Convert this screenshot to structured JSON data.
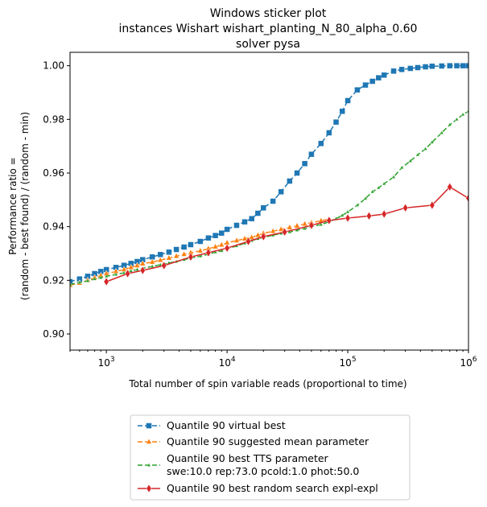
{
  "chart_data": {
    "type": "line",
    "title_lines": [
      "Windows sticker plot",
      "instances Wishart wishart_planting_N_80_alpha_0.60",
      "solver pysa"
    ],
    "xlabel": "Total number of spin variable reads (proportional to time)",
    "ylabel_lines": [
      "Performance ratio =",
      "(random - best found) / (random - min)"
    ],
    "xscale": "log",
    "xlim": [
      500,
      1000000
    ],
    "ylim": [
      0.894,
      1.005
    ],
    "grid": false,
    "legend_position": "below",
    "x_ticks": [
      {
        "value": 1000,
        "base": "10",
        "exp": "3"
      },
      {
        "value": 10000,
        "base": "10",
        "exp": "4"
      },
      {
        "value": 100000,
        "base": "10",
        "exp": "5"
      },
      {
        "value": 1000000,
        "base": "10",
        "exp": "6"
      }
    ],
    "y_ticks": [
      {
        "value": 0.9,
        "label": "0.90"
      },
      {
        "value": 0.92,
        "label": "0.92"
      },
      {
        "value": 0.94,
        "label": "0.94"
      },
      {
        "value": 0.96,
        "label": "0.96"
      },
      {
        "value": 0.98,
        "label": "0.98"
      },
      {
        "value": 1.0,
        "label": "1.00"
      }
    ],
    "series": [
      {
        "name_lines": [
          "Quantile 90 virtual best"
        ],
        "color": "#1f77b4",
        "marker": "square",
        "dash": "6,3",
        "points": [
          [
            500,
            0.9195
          ],
          [
            600,
            0.9205
          ],
          [
            700,
            0.9215
          ],
          [
            800,
            0.9225
          ],
          [
            900,
            0.9233
          ],
          [
            1000,
            0.924
          ],
          [
            1200,
            0.9248
          ],
          [
            1400,
            0.9256
          ],
          [
            1600,
            0.9263
          ],
          [
            1800,
            0.927
          ],
          [
            2000,
            0.9277
          ],
          [
            2400,
            0.9287
          ],
          [
            2800,
            0.9296
          ],
          [
            3300,
            0.9305
          ],
          [
            3800,
            0.9315
          ],
          [
            4400,
            0.9324
          ],
          [
            5000,
            0.9333
          ],
          [
            6000,
            0.9345
          ],
          [
            7000,
            0.9358
          ],
          [
            8000,
            0.9367
          ],
          [
            9000,
            0.9376
          ],
          [
            10000,
            0.939
          ],
          [
            12000,
            0.9405
          ],
          [
            14000,
            0.9418
          ],
          [
            16000,
            0.943
          ],
          [
            18000,
            0.945
          ],
          [
            20000,
            0.947
          ],
          [
            24000,
            0.9495
          ],
          [
            28000,
            0.953
          ],
          [
            33000,
            0.957
          ],
          [
            38000,
            0.96
          ],
          [
            44000,
            0.9635
          ],
          [
            50000,
            0.967
          ],
          [
            60000,
            0.971
          ],
          [
            70000,
            0.975
          ],
          [
            80000,
            0.979
          ],
          [
            90000,
            0.983
          ],
          [
            100000,
            0.987
          ],
          [
            120000,
            0.991
          ],
          [
            140000,
            0.9928
          ],
          [
            160000,
            0.9942
          ],
          [
            180000,
            0.9955
          ],
          [
            200000,
            0.9965
          ],
          [
            240000,
            0.998
          ],
          [
            280000,
            0.9986
          ],
          [
            330000,
            0.999
          ],
          [
            380000,
            0.9993
          ],
          [
            440000,
            0.9996
          ],
          [
            500000,
            0.9998
          ],
          [
            600000,
            0.9999
          ],
          [
            700000,
            1.0
          ],
          [
            800000,
            1.0
          ],
          [
            900000,
            1.0
          ],
          [
            1000000,
            1.0
          ]
        ]
      },
      {
        "name_lines": [
          "Quantile 90 suggested mean parameter"
        ],
        "color": "#ff7f0e",
        "marker": "triangle",
        "dash": "6,3",
        "points": [
          [
            500,
            0.9182
          ],
          [
            600,
            0.919
          ],
          [
            700,
            0.92
          ],
          [
            800,
            0.921
          ],
          [
            900,
            0.9218
          ],
          [
            1000,
            0.9225
          ],
          [
            1200,
            0.9233
          ],
          [
            1400,
            0.924
          ],
          [
            1600,
            0.9248
          ],
          [
            1800,
            0.9255
          ],
          [
            2000,
            0.9262
          ],
          [
            2400,
            0.9268
          ],
          [
            2800,
            0.9275
          ],
          [
            3300,
            0.9283
          ],
          [
            3800,
            0.929
          ],
          [
            4400,
            0.9297
          ],
          [
            5000,
            0.9303
          ],
          [
            6000,
            0.931
          ],
          [
            7000,
            0.9318
          ],
          [
            8000,
            0.9325
          ],
          [
            9000,
            0.9332
          ],
          [
            10000,
            0.934
          ],
          [
            12000,
            0.9348
          ],
          [
            14000,
            0.9355
          ],
          [
            16000,
            0.936
          ],
          [
            18000,
            0.9368
          ],
          [
            20000,
            0.9375
          ],
          [
            24000,
            0.9383
          ],
          [
            28000,
            0.939
          ],
          [
            33000,
            0.9397
          ],
          [
            38000,
            0.9403
          ],
          [
            44000,
            0.941
          ],
          [
            50000,
            0.9415
          ],
          [
            60000,
            0.9422
          ],
          [
            70000,
            0.9428
          ]
        ]
      },
      {
        "name_lines": [
          "Quantile 90 best TTS parameter",
          "swe:10.0 rep:73.0 pcold:1.0 phot:50.0"
        ],
        "color": "#2ca02c",
        "marker": "smalltri",
        "dash": "6,3",
        "points": [
          [
            500,
            0.9185
          ],
          [
            600,
            0.9192
          ],
          [
            700,
            0.9198
          ],
          [
            800,
            0.9205
          ],
          [
            900,
            0.921
          ],
          [
            1000,
            0.9215
          ],
          [
            1200,
            0.9222
          ],
          [
            1400,
            0.9228
          ],
          [
            1600,
            0.9235
          ],
          [
            1800,
            0.924
          ],
          [
            2000,
            0.9245
          ],
          [
            2400,
            0.9252
          ],
          [
            2800,
            0.9258
          ],
          [
            3300,
            0.9265
          ],
          [
            3800,
            0.927
          ],
          [
            4400,
            0.9277
          ],
          [
            5000,
            0.9283
          ],
          [
            6000,
            0.929
          ],
          [
            7000,
            0.9297
          ],
          [
            8000,
            0.9305
          ],
          [
            9000,
            0.931
          ],
          [
            10000,
            0.9318
          ],
          [
            12000,
            0.9328
          ],
          [
            14000,
            0.9338
          ],
          [
            16000,
            0.9348
          ],
          [
            18000,
            0.9355
          ],
          [
            20000,
            0.936
          ],
          [
            24000,
            0.9368
          ],
          [
            28000,
            0.9375
          ],
          [
            33000,
            0.938
          ],
          [
            38000,
            0.9387
          ],
          [
            44000,
            0.9393
          ],
          [
            50000,
            0.94
          ],
          [
            60000,
            0.9408
          ],
          [
            70000,
            0.9418
          ],
          [
            80000,
            0.943
          ],
          [
            90000,
            0.9442
          ],
          [
            100000,
            0.9455
          ],
          [
            120000,
            0.948
          ],
          [
            140000,
            0.9505
          ],
          [
            160000,
            0.953
          ],
          [
            180000,
            0.9545
          ],
          [
            200000,
            0.956
          ],
          [
            240000,
            0.9585
          ],
          [
            280000,
            0.962
          ],
          [
            330000,
            0.9645
          ],
          [
            380000,
            0.9668
          ],
          [
            440000,
            0.969
          ],
          [
            500000,
            0.9715
          ],
          [
            600000,
            0.975
          ],
          [
            700000,
            0.978
          ],
          [
            800000,
            0.98
          ],
          [
            900000,
            0.9818
          ],
          [
            1000000,
            0.983
          ]
        ]
      },
      {
        "name_lines": [
          "Quantile 90  best random search expl-expl"
        ],
        "color": "#d62728",
        "marker": "diamond",
        "dash": "",
        "points": [
          [
            1000,
            0.9195
          ],
          [
            1500,
            0.9225
          ],
          [
            2000,
            0.9237
          ],
          [
            3000,
            0.9255
          ],
          [
            5000,
            0.9287
          ],
          [
            7000,
            0.9303
          ],
          [
            10000,
            0.932
          ],
          [
            15000,
            0.9345
          ],
          [
            20000,
            0.9363
          ],
          [
            30000,
            0.938
          ],
          [
            50000,
            0.9405
          ],
          [
            70000,
            0.9423
          ],
          [
            100000,
            0.9432
          ],
          [
            150000,
            0.944
          ],
          [
            200000,
            0.9447
          ],
          [
            300000,
            0.947
          ],
          [
            500000,
            0.948
          ],
          [
            700000,
            0.9548
          ],
          [
            1000000,
            0.9506
          ]
        ]
      }
    ]
  }
}
